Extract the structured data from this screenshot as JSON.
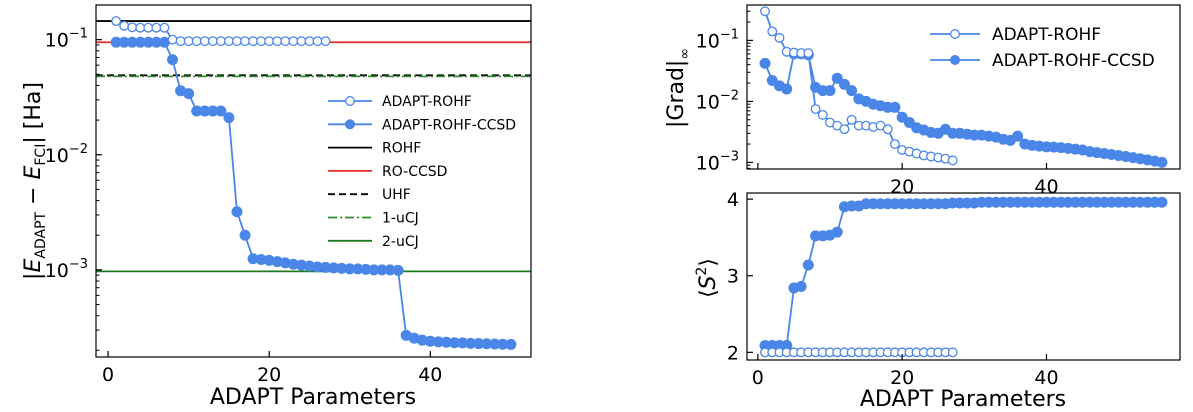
{
  "colors": {
    "adapt": "#4a86e8",
    "rohf": "#000000",
    "roccsd": "#e8292b",
    "uhf": "#000000",
    "uCJ1": "#2e8b2e",
    "uCJ2": "#1f7a1f"
  },
  "chart_data": [
    {
      "type": "line",
      "xlabel": "ADAPT Parameters",
      "ylabel": "|E_ADAPT − E_FCI| [Ha]",
      "yscale": "log",
      "xlim": [
        -1.5,
        52.5
      ],
      "ylim": [
        0.000175,
        0.2
      ],
      "xticks": [
        "0",
        "20",
        "40"
      ],
      "yticks": [
        "10^-3",
        "10^-2",
        "10^-1"
      ],
      "legend": "center-right",
      "series": [
        {
          "name": "ADAPT-ROHF",
          "marker": "open-circle",
          "x": [
            1,
            2,
            3,
            4,
            5,
            6,
            7,
            8,
            9,
            10,
            11,
            12,
            13,
            14,
            15,
            16,
            17,
            18,
            19,
            20,
            21,
            22,
            23,
            24,
            25,
            26,
            27
          ],
          "y": [
            0.145,
            0.132,
            0.128,
            0.127,
            0.127,
            0.127,
            0.127,
            0.1,
            0.097,
            0.097,
            0.097,
            0.097,
            0.097,
            0.097,
            0.097,
            0.097,
            0.097,
            0.097,
            0.097,
            0.097,
            0.097,
            0.097,
            0.097,
            0.097,
            0.097,
            0.097,
            0.097
          ]
        },
        {
          "name": "ADAPT-ROHF-CCSD",
          "marker": "filled-circle",
          "x": [
            1,
            2,
            3,
            4,
            5,
            6,
            7,
            8,
            9,
            10,
            11,
            12,
            13,
            14,
            15,
            16,
            17,
            18,
            19,
            20,
            21,
            22,
            23,
            24,
            25,
            26,
            27,
            28,
            29,
            30,
            31,
            32,
            33,
            34,
            35,
            36,
            37,
            38,
            39,
            40,
            41,
            42,
            43,
            44,
            45,
            46,
            47,
            48,
            49,
            50
          ],
          "y": [
            0.095,
            0.095,
            0.095,
            0.095,
            0.095,
            0.095,
            0.095,
            0.067,
            0.036,
            0.034,
            0.024,
            0.024,
            0.024,
            0.024,
            0.021,
            0.0032,
            0.002,
            0.00125,
            0.00123,
            0.00121,
            0.00118,
            0.00115,
            0.00112,
            0.0011,
            0.00108,
            0.00106,
            0.00105,
            0.00104,
            0.00103,
            0.00102,
            0.00102,
            0.00101,
            0.001,
            0.001,
            0.001,
            0.00099,
            0.00027,
            0.000255,
            0.000245,
            0.00024,
            0.000237,
            0.000235,
            0.000233,
            0.000232,
            0.00023,
            0.000229,
            0.000228,
            0.000227,
            0.000226,
            0.000225
          ]
        },
        {
          "name": "ROHF",
          "style": "solid",
          "y": 0.145
        },
        {
          "name": "RO-CCSD",
          "style": "solid",
          "y": 0.095
        },
        {
          "name": "UHF",
          "style": "dashed",
          "y": 0.049
        },
        {
          "name": "1-uCJ",
          "style": "dashdot",
          "y": 0.048
        },
        {
          "name": "2-uCJ",
          "style": "solid",
          "y": 0.00097
        }
      ]
    },
    {
      "type": "line",
      "ylabel": "|Grad|_∞",
      "yscale": "log",
      "xlim": [
        -1.5,
        58.5
      ],
      "ylim": [
        0.00078,
        0.38
      ],
      "xticks": [
        "20",
        "40"
      ],
      "yticks": [
        "10^-3",
        "10^-2",
        "10^-1"
      ],
      "legend": "top-right",
      "series": [
        {
          "name": "ADAPT-ROHF",
          "marker": "open-circle",
          "x": [
            1,
            2,
            3,
            4,
            5,
            6,
            7,
            8,
            9,
            10,
            11,
            12,
            13,
            14,
            15,
            16,
            17,
            18,
            19,
            20,
            21,
            22,
            23,
            24,
            25,
            26,
            27
          ],
          "y": [
            0.3,
            0.14,
            0.11,
            0.065,
            0.063,
            0.062,
            0.062,
            0.0075,
            0.006,
            0.0045,
            0.004,
            0.0035,
            0.005,
            0.004,
            0.004,
            0.0038,
            0.004,
            0.0035,
            0.002,
            0.0016,
            0.0015,
            0.0014,
            0.0013,
            0.00125,
            0.0012,
            0.00115,
            0.00108
          ]
        },
        {
          "name": "ADAPT-ROHF-CCSD",
          "marker": "filled-circle",
          "x": [
            1,
            2,
            3,
            4,
            5,
            6,
            7,
            8,
            9,
            10,
            11,
            12,
            13,
            14,
            15,
            16,
            17,
            18,
            19,
            20,
            21,
            22,
            23,
            24,
            25,
            26,
            27,
            28,
            29,
            30,
            31,
            32,
            33,
            34,
            35,
            36,
            37,
            38,
            39,
            40,
            41,
            42,
            43,
            44,
            45,
            46,
            47,
            48,
            49,
            50,
            51,
            52,
            53,
            54,
            55,
            56
          ],
          "y": [
            0.042,
            0.022,
            0.018,
            0.016,
            0.06,
            0.06,
            0.058,
            0.017,
            0.015,
            0.015,
            0.024,
            0.019,
            0.015,
            0.011,
            0.01,
            0.009,
            0.0085,
            0.008,
            0.008,
            0.0055,
            0.0045,
            0.0037,
            0.0034,
            0.0031,
            0.003,
            0.0035,
            0.003,
            0.003,
            0.0029,
            0.0028,
            0.0028,
            0.0027,
            0.0026,
            0.0024,
            0.0023,
            0.0027,
            0.002,
            0.0019,
            0.00185,
            0.0018,
            0.00178,
            0.00175,
            0.0017,
            0.00165,
            0.0016,
            0.0015,
            0.00145,
            0.0014,
            0.00135,
            0.0013,
            0.00125,
            0.0012,
            0.00115,
            0.0011,
            0.00105,
            0.001
          ]
        }
      ]
    },
    {
      "type": "line",
      "xlabel": "ADAPT Parameters",
      "ylabel": "⟨S²⟩",
      "xlim": [
        -1.5,
        58.5
      ],
      "ylim": [
        1.9,
        4.08
      ],
      "xticks": [
        "0",
        "20",
        "40"
      ],
      "yticks": [
        "2",
        "3",
        "4"
      ],
      "series": [
        {
          "name": "ADAPT-ROHF",
          "marker": "open-circle",
          "x": [
            1,
            2,
            3,
            4,
            5,
            6,
            7,
            8,
            9,
            10,
            11,
            12,
            13,
            14,
            15,
            16,
            17,
            18,
            19,
            20,
            21,
            22,
            23,
            24,
            25,
            26,
            27
          ],
          "y": [
            2,
            2,
            2,
            2,
            2,
            2,
            2,
            2,
            2,
            2,
            2,
            2,
            2,
            2,
            2,
            2,
            2,
            2,
            2,
            2,
            2,
            2,
            2,
            2,
            2,
            2,
            2
          ]
        },
        {
          "name": "ADAPT-ROHF-CCSD",
          "marker": "filled-circle",
          "x": [
            1,
            2,
            3,
            4,
            5,
            6,
            7,
            8,
            9,
            10,
            11,
            12,
            13,
            14,
            15,
            16,
            17,
            18,
            19,
            20,
            21,
            22,
            23,
            24,
            25,
            26,
            27,
            28,
            29,
            30,
            31,
            32,
            33,
            34,
            35,
            36,
            37,
            38,
            39,
            40,
            41,
            42,
            43,
            44,
            45,
            46,
            47,
            48,
            49,
            50,
            51,
            52,
            53,
            54,
            55,
            56
          ],
          "y": [
            2.09,
            2.09,
            2.09,
            2.09,
            2.84,
            2.86,
            3.14,
            3.52,
            3.52,
            3.53,
            3.57,
            3.9,
            3.91,
            3.91,
            3.94,
            3.94,
            3.94,
            3.94,
            3.94,
            3.94,
            3.94,
            3.94,
            3.94,
            3.94,
            3.94,
            3.94,
            3.95,
            3.95,
            3.95,
            3.95,
            3.96,
            3.96,
            3.96,
            3.96,
            3.96,
            3.96,
            3.96,
            3.96,
            3.96,
            3.96,
            3.96,
            3.96,
            3.96,
            3.96,
            3.96,
            3.96,
            3.96,
            3.96,
            3.96,
            3.96,
            3.96,
            3.96,
            3.96,
            3.96,
            3.96,
            3.96
          ]
        }
      ]
    }
  ]
}
